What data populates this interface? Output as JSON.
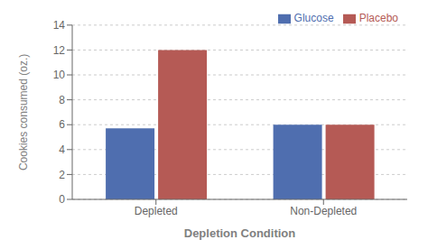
{
  "chart_data": {
    "type": "bar",
    "categories": [
      "Depleted",
      "Non-Depleted"
    ],
    "series": [
      {
        "name": "Glucose",
        "color": "#4F6EAF",
        "values": [
          5.7,
          6.0
        ]
      },
      {
        "name": "Placebo",
        "color": "#B55A55",
        "values": [
          12.0,
          6.0
        ]
      }
    ],
    "xlabel": "Depletion Condition",
    "ylabel": "Cookies consumed (oz.)",
    "ylim": [
      0,
      14
    ],
    "yticks": [
      0,
      2,
      4,
      6,
      8,
      10,
      12,
      14
    ],
    "grid": true,
    "legend": "upper right"
  }
}
